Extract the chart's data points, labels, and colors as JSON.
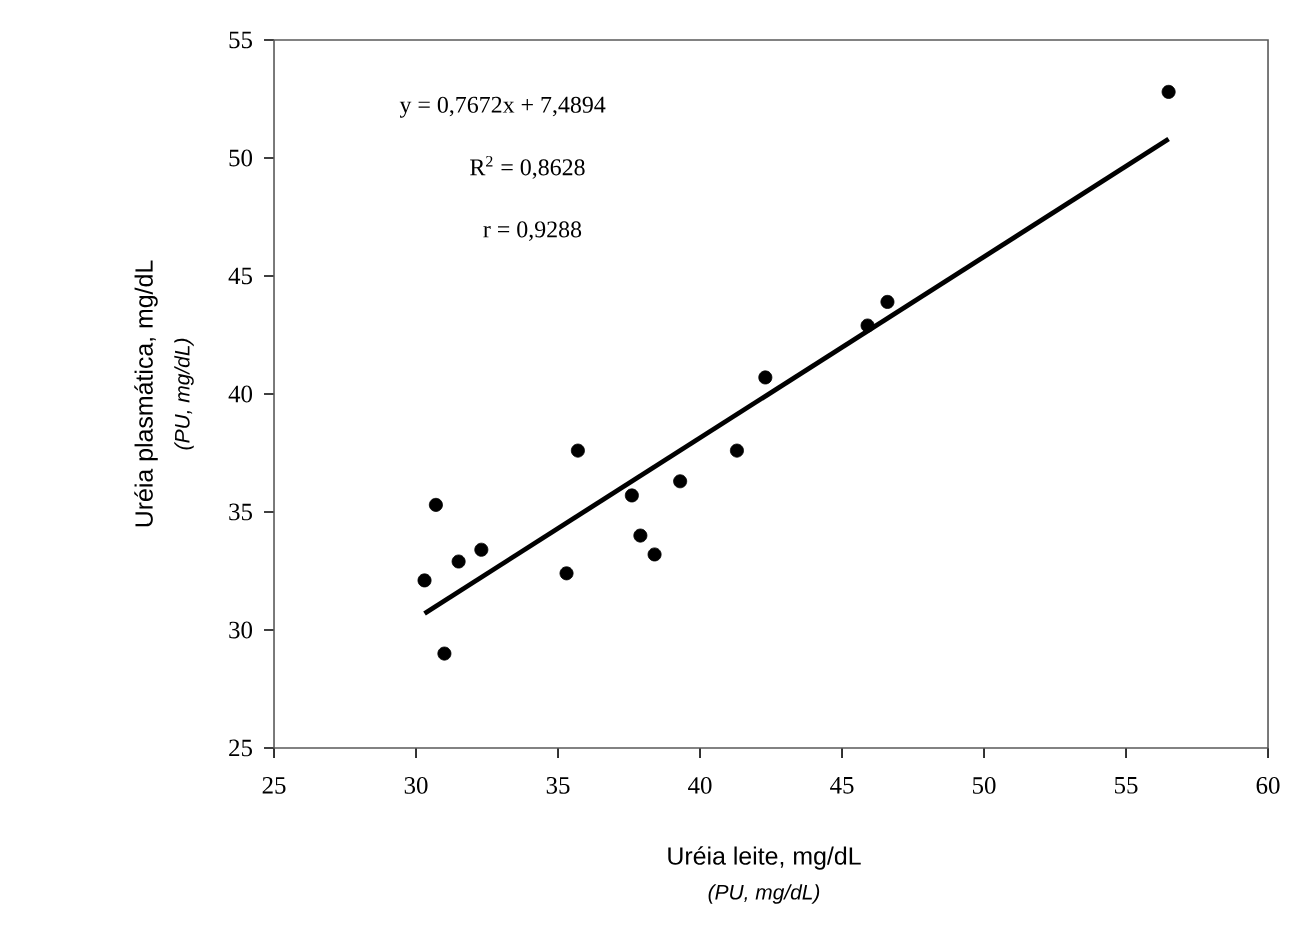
{
  "chart_data": {
    "type": "scatter",
    "xlabel": "Uréia leite, mg/dL",
    "ylabel": "Uréia plasmática, mg/dL",
    "annotations": [
      "y = 0,7672x  + 7,4894",
      "R$^{2}$ = 0,8628",
      "r = 0,9288",
      "*(PU, mg/dL)*",
      "*(PU, mg/dL)*"
    ],
    "series": [
      {
        "marker": "circle",
        "color": "#000000",
        "x": [
          30.3,
          30.7,
          31.0,
          31.5,
          32.3,
          35.3,
          35.7,
          37.6,
          37.9,
          38.4,
          39.3,
          41.3,
          42.3,
          45.9,
          46.6,
          56.5
        ],
        "values": [
          32.1,
          35.3,
          29.0,
          32.9,
          33.4,
          32.4,
          37.6,
          35.7,
          34.0,
          33.2,
          36.3,
          37.6,
          40.7,
          42.9,
          43.9,
          52.8
        ]
      },
      {
        "type": "line",
        "marker": "none",
        "color": "#000000",
        "x": [
          30.3,
          56.5
        ],
        "values": [
          30.7,
          50.8
        ]
      }
    ],
    "xlim": [
      25,
      60
    ],
    "xticks": [
      25,
      30,
      35,
      40,
      45,
      50,
      55,
      60
    ],
    "ylim": [
      25,
      55
    ],
    "yticks": [
      25,
      30,
      35,
      40,
      45,
      50,
      55
    ]
  }
}
